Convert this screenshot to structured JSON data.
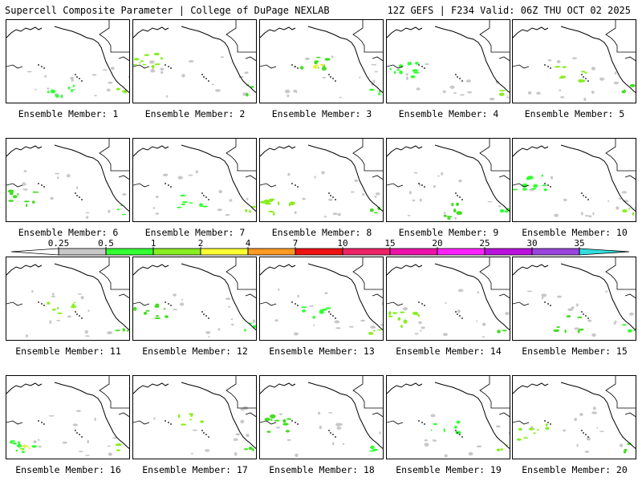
{
  "header": {
    "left": "Supercell Composite Parameter | College of DuPage NEXLAB",
    "right": "12Z GEFS | F234 Valid: 06Z THU OCT 02 2025"
  },
  "panels": [
    {
      "label": "Ensemble Member: 1"
    },
    {
      "label": "Ensemble Member: 2"
    },
    {
      "label": "Ensemble Member: 3"
    },
    {
      "label": "Ensemble Member: 4"
    },
    {
      "label": "Ensemble Member: 5"
    },
    {
      "label": "Ensemble Member: 6"
    },
    {
      "label": "Ensemble Member: 7"
    },
    {
      "label": "Ensemble Member: 8"
    },
    {
      "label": "Ensemble Member: 9"
    },
    {
      "label": "Ensemble Member: 10"
    },
    {
      "label": "Ensemble Member: 11"
    },
    {
      "label": "Ensemble Member: 12"
    },
    {
      "label": "Ensemble Member: 13"
    },
    {
      "label": "Ensemble Member: 14"
    },
    {
      "label": "Ensemble Member: 15"
    },
    {
      "label": "Ensemble Member: 16"
    },
    {
      "label": "Ensemble Member: 17"
    },
    {
      "label": "Ensemble Member: 18"
    },
    {
      "label": "Ensemble Member: 19"
    },
    {
      "label": "Ensemble Member: 20"
    }
  ],
  "colorbar": {
    "ticks": [
      "0.25",
      "0.5",
      "1",
      "2",
      "4",
      "7",
      "10",
      "15",
      "20",
      "25",
      "30",
      "35"
    ],
    "colors": [
      "#c8c8c8",
      "#33ff33",
      "#88ee22",
      "#ffff33",
      "#ff9922",
      "#ee1111",
      "#ee2266",
      "#ee11aa",
      "#ff22ff",
      "#bb11dd",
      "#9944dd",
      "#33dddd"
    ]
  }
}
